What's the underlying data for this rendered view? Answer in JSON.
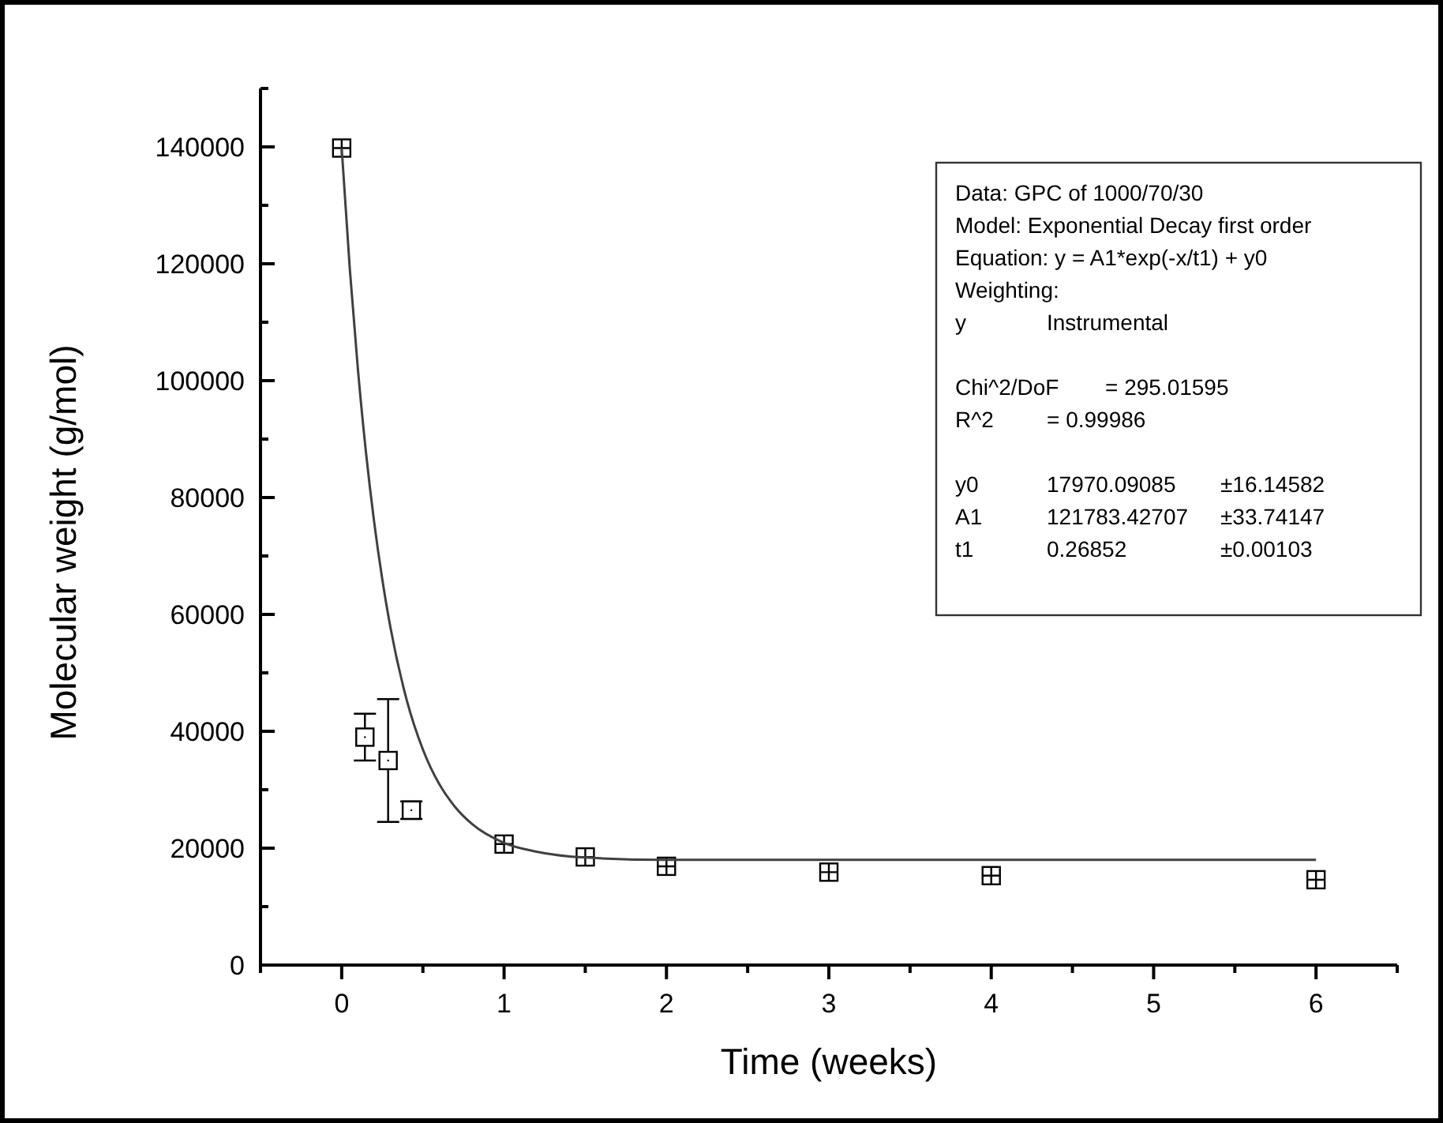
{
  "chart_data": {
    "type": "scatter",
    "xlabel": "Time (weeks)",
    "ylabel": "Molecular weight (g/mol)",
    "xlim": [
      -0.5,
      6.5
    ],
    "xticks": [
      {
        "value": -0.5,
        "label": null
      },
      0,
      {
        "value": 0.5,
        "label": null
      },
      1,
      {
        "value": 1.5,
        "label": null
      },
      2,
      {
        "value": 2.5,
        "label": null
      },
      3,
      {
        "value": 3.5,
        "label": null
      },
      4,
      {
        "value": 4.5,
        "label": null
      },
      5,
      {
        "value": 5.5,
        "label": null
      },
      6,
      {
        "value": 6.5,
        "label": null
      }
    ],
    "ylim": [
      0,
      150000
    ],
    "yticks": [
      0,
      {
        "value": 10000,
        "label": null
      },
      20000,
      {
        "value": 30000,
        "label": null
      },
      40000,
      {
        "value": 50000,
        "label": null
      },
      60000,
      {
        "value": 70000,
        "label": null
      },
      80000,
      {
        "value": 90000,
        "label": null
      },
      100000,
      {
        "value": 110000,
        "label": null
      },
      120000,
      {
        "value": 130000,
        "label": null
      },
      140000,
      {
        "value": 150000,
        "label": null
      }
    ],
    "grid": false,
    "marker": "square",
    "series": [
      {
        "color": "#000000",
        "x": [
          0,
          0.143,
          0.286,
          0.429,
          1,
          1.5,
          2,
          3,
          4,
          6
        ],
        "values": [
          139800,
          39000,
          35000,
          26500,
          20700,
          18500,
          16900,
          15900,
          15300,
          14600
        ],
        "errors": [
          null,
          4000,
          [
            24500,
            45500
          ],
          [
            25000,
            28000
          ],
          null,
          null,
          null,
          null,
          null,
          null
        ]
      },
      {
        "type": "line",
        "color": "#404040",
        "marker": "none",
        "line_style": "solid",
        "x": [
          0,
          0.05,
          0.1,
          0.15,
          0.2,
          0.25,
          0.3,
          0.4,
          0.5,
          0.6,
          0.7,
          0.8,
          1,
          1.2,
          1.5,
          2,
          6
        ],
        "values": [
          139800,
          119100,
          101900,
          87600,
          75800,
          66000,
          57800,
          45400,
          36900,
          31000,
          27000,
          24200,
          20900,
          19400,
          18400,
          18000,
          18000
        ]
      }
    ],
    "annotations": [
      "Data: GPC of 1000/70/30\nModel: Exponential Decay first order\nEquation: y = A1*exp(-x/t1) + y0\nWeighting:\ny\tInstrumental",
      "Chi^2/DoF\t= 295.01595\nR^2\t= 0.99986",
      "y0\t17970.09085\t±16.14582\nA1\t121783.42707\t±33.74147\nt1\t0.26852\t±0.00103"
    ]
  }
}
